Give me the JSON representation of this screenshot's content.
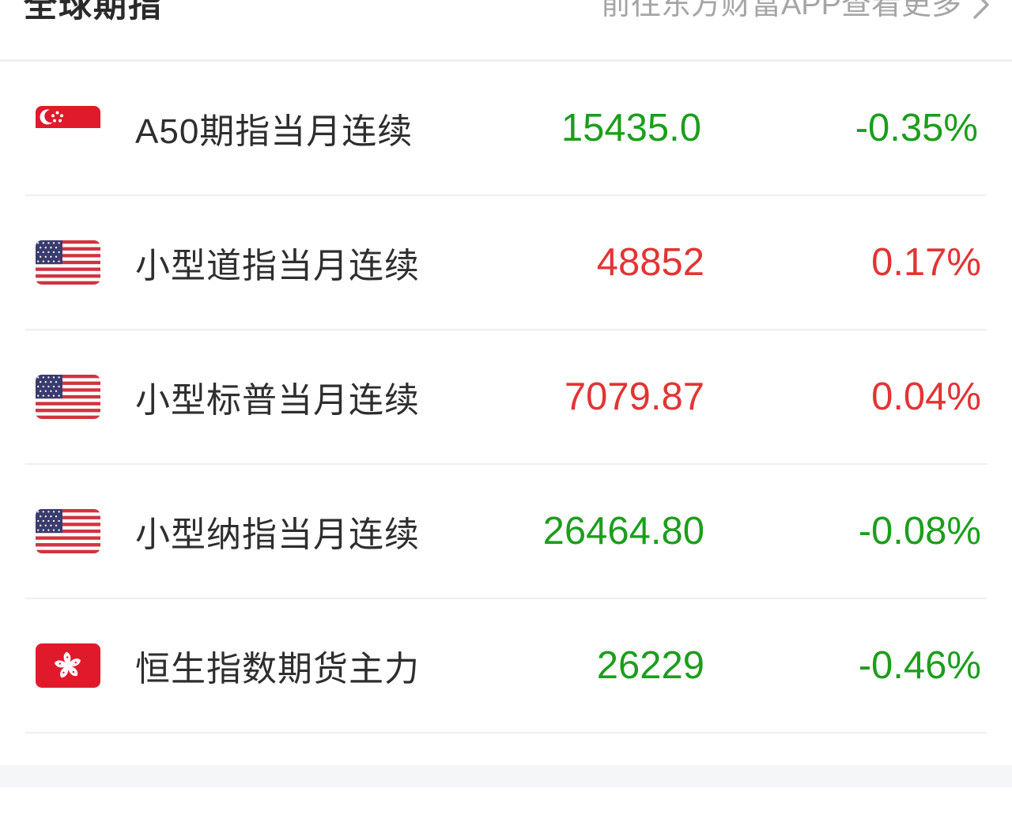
{
  "header": {
    "title": "全球期指",
    "more_link": "前往东方财富APP查看更多",
    "chevron_icon": "chevron-right"
  },
  "colors": {
    "up": "#e23434",
    "down": "#1c9e1c"
  },
  "flag_icon_names": {
    "sg": "singapore-flag-icon",
    "us": "usa-flag-icon",
    "hk": "hong-kong-flag-icon"
  },
  "rows": [
    {
      "flag": "sg",
      "name": "A50期指当月连续",
      "price": "15435.0",
      "change_pct": "-0.35%",
      "direction": "down"
    },
    {
      "flag": "us",
      "name": "小型道指当月连续",
      "price": "48852",
      "change_pct": "0.17%",
      "direction": "up"
    },
    {
      "flag": "us",
      "name": "小型标普当月连续",
      "price": "7079.87",
      "change_pct": "0.04%",
      "direction": "up"
    },
    {
      "flag": "us",
      "name": "小型纳指当月连续",
      "price": "26464.80",
      "change_pct": "-0.08%",
      "direction": "down"
    },
    {
      "flag": "hk",
      "name": "恒生指数期货主力",
      "price": "26229",
      "change_pct": "-0.46%",
      "direction": "down"
    }
  ]
}
